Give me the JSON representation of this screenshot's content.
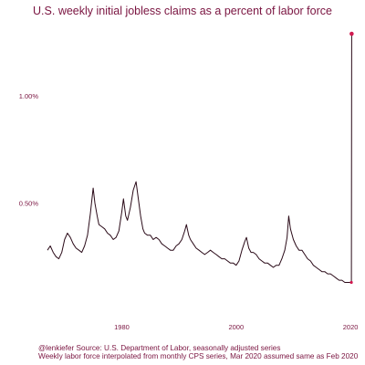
{
  "chart_data": {
    "type": "line",
    "title": "U.S. weekly initial jobless claims as a percent of labor force",
    "xlabel": "",
    "ylabel": "",
    "xlim": [
      1967,
      2020.3
    ],
    "ylim": [
      0.0,
      1.32
    ],
    "y_ticks": [
      {
        "value": 0.5,
        "label": "0.50%"
      },
      {
        "value": 1.0,
        "label": "1.00%"
      }
    ],
    "x_ticks": [
      {
        "value": 1980,
        "label": "1980"
      },
      {
        "value": 2000,
        "label": "2000"
      },
      {
        "value": 2020,
        "label": "2020"
      }
    ],
    "grid": false,
    "legend": "none",
    "series": [
      {
        "x": [
          1967.0,
          1967.5,
          1968.0,
          1968.5,
          1969.0,
          1969.5,
          1970.0,
          1970.5,
          1971.0,
          1971.5,
          1972.0,
          1972.5,
          1973.0,
          1973.5,
          1974.0,
          1974.5,
          1975.0,
          1975.3,
          1975.7,
          1976.0,
          1976.5,
          1977.0,
          1977.5,
          1978.0,
          1978.5,
          1979.0,
          1979.5,
          1980.0,
          1980.3,
          1980.7,
          1981.0,
          1981.5,
          1982.0,
          1982.5,
          1982.9,
          1983.3,
          1983.7,
          1984.0,
          1984.5,
          1985.0,
          1985.5,
          1986.0,
          1986.5,
          1987.0,
          1987.5,
          1988.0,
          1988.5,
          1989.0,
          1989.5,
          1990.0,
          1990.5,
          1991.0,
          1991.3,
          1991.7,
          1992.0,
          1992.5,
          1993.0,
          1993.5,
          1994.0,
          1994.5,
          1995.0,
          1995.5,
          1996.0,
          1996.5,
          1997.0,
          1997.5,
          1998.0,
          1998.5,
          1999.0,
          1999.5,
          2000.0,
          2000.5,
          2001.0,
          2001.5,
          2001.8,
          2002.2,
          2002.6,
          2003.0,
          2003.5,
          2004.0,
          2004.5,
          2005.0,
          2005.5,
          2006.0,
          2006.5,
          2007.0,
          2007.5,
          2008.0,
          2008.5,
          2008.9,
          2009.2,
          2009.5,
          2010.0,
          2010.5,
          2011.0,
          2011.5,
          2012.0,
          2012.5,
          2013.0,
          2013.5,
          2014.0,
          2014.5,
          2015.0,
          2015.5,
          2016.0,
          2016.5,
          2017.0,
          2017.5,
          2018.0,
          2018.5,
          2019.0,
          2019.5,
          2020.0,
          2020.15,
          2020.2
        ],
        "values": [
          0.28,
          0.3,
          0.27,
          0.25,
          0.24,
          0.27,
          0.33,
          0.36,
          0.34,
          0.31,
          0.29,
          0.28,
          0.27,
          0.3,
          0.35,
          0.45,
          0.57,
          0.5,
          0.44,
          0.4,
          0.39,
          0.38,
          0.36,
          0.35,
          0.33,
          0.34,
          0.37,
          0.46,
          0.52,
          0.44,
          0.42,
          0.48,
          0.56,
          0.6,
          0.52,
          0.44,
          0.38,
          0.36,
          0.35,
          0.35,
          0.33,
          0.34,
          0.33,
          0.31,
          0.3,
          0.29,
          0.28,
          0.28,
          0.3,
          0.31,
          0.33,
          0.37,
          0.4,
          0.35,
          0.33,
          0.31,
          0.29,
          0.28,
          0.27,
          0.26,
          0.27,
          0.28,
          0.27,
          0.26,
          0.25,
          0.24,
          0.24,
          0.23,
          0.22,
          0.22,
          0.21,
          0.23,
          0.28,
          0.32,
          0.34,
          0.29,
          0.27,
          0.27,
          0.26,
          0.24,
          0.23,
          0.22,
          0.22,
          0.21,
          0.2,
          0.21,
          0.21,
          0.24,
          0.28,
          0.34,
          0.44,
          0.38,
          0.33,
          0.3,
          0.28,
          0.28,
          0.26,
          0.24,
          0.23,
          0.21,
          0.2,
          0.19,
          0.18,
          0.18,
          0.17,
          0.17,
          0.16,
          0.15,
          0.14,
          0.14,
          0.13,
          0.13,
          0.13,
          0.13,
          1.29
        ]
      }
    ]
  },
  "captions": {
    "line1": "@lenkiefer Source: U.S. Department of Labor, seasonally adjusted series",
    "line2": "Weekly labor force interpolated from monthly CPS series, Mar 2020 assumed same as Feb 2020"
  },
  "colors": {
    "line": "#2a0a18",
    "point": "#d11a50",
    "text": "#7a1440"
  }
}
